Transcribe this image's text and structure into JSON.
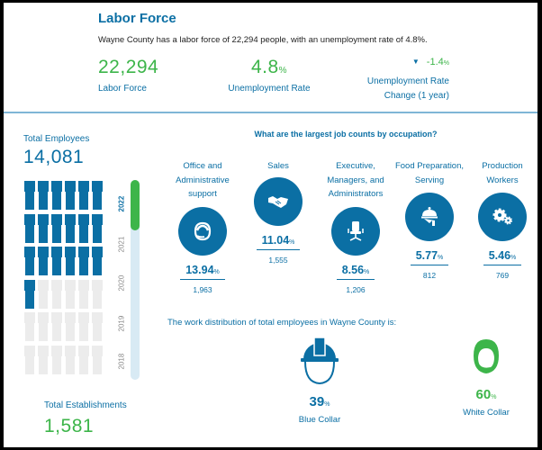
{
  "header": {
    "title": "Labor Force",
    "description": "Wayne County has a labor force of 22,294 people, with an unemployment rate of 4.8%.",
    "kpis": {
      "labor_force": {
        "value": "22,294",
        "label": "Labor Force"
      },
      "unemployment_rate": {
        "value": "4.8",
        "unit": "%",
        "label": "Unemployment Rate"
      },
      "rate_change": {
        "direction": "down",
        "direction_icon": "triangle-down-icon",
        "value": "-1.4",
        "unit": "%",
        "label_line1": "Unemployment Rate",
        "label_line2": "Change (1 year)"
      }
    }
  },
  "employees": {
    "label": "Total Employees",
    "value": "14,081",
    "waffle": {
      "total_cells": 36,
      "filled_cells": 19,
      "columns": 6,
      "fill_color": "#0b6fa4",
      "empty_color": "#ececec"
    },
    "year_selector": {
      "years": [
        "2022",
        "2021",
        "2020",
        "2019",
        "2018"
      ],
      "selected": "2022",
      "handle_color": "#3db54a",
      "track_color": "#d8eaf4"
    }
  },
  "establishments": {
    "label": "Total Establishments",
    "value": "1,581"
  },
  "occupations": {
    "question": "What are the largest job counts by occupation?",
    "items": [
      {
        "name_lines": [
          "Office and",
          "Administrative",
          "support"
        ],
        "icon": "headset-icon",
        "percent": "13.94",
        "unit": "%",
        "count": "1,963"
      },
      {
        "name_lines": [
          "Sales"
        ],
        "icon": "handshake-icon",
        "percent": "11.04",
        "unit": "%",
        "count": "1,555"
      },
      {
        "name_lines": [
          "Executive,",
          "Managers, and",
          "Administrators"
        ],
        "icon": "office-chair-icon",
        "percent": "8.56",
        "unit": "%",
        "count": "1,206"
      },
      {
        "name_lines": [
          "Food Preparation,",
          "Serving"
        ],
        "icon": "cloche-icon",
        "percent": "5.77",
        "unit": "%",
        "count": "812"
      },
      {
        "name_lines": [
          "Production",
          "Workers"
        ],
        "icon": "gears-icon",
        "percent": "5.46",
        "unit": "%",
        "count": "769"
      }
    ]
  },
  "distribution": {
    "text": "The work distribution of total employees in Wayne County is:",
    "blue_collar": {
      "percent": "39",
      "unit": "%",
      "label": "Blue Collar",
      "icon": "hard-hat-icon",
      "color": "#0b6fa4"
    },
    "white_collar": {
      "percent": "60",
      "unit": "%",
      "label": "White Collar",
      "icon": "headset-person-icon",
      "color": "#3db54a"
    }
  }
}
